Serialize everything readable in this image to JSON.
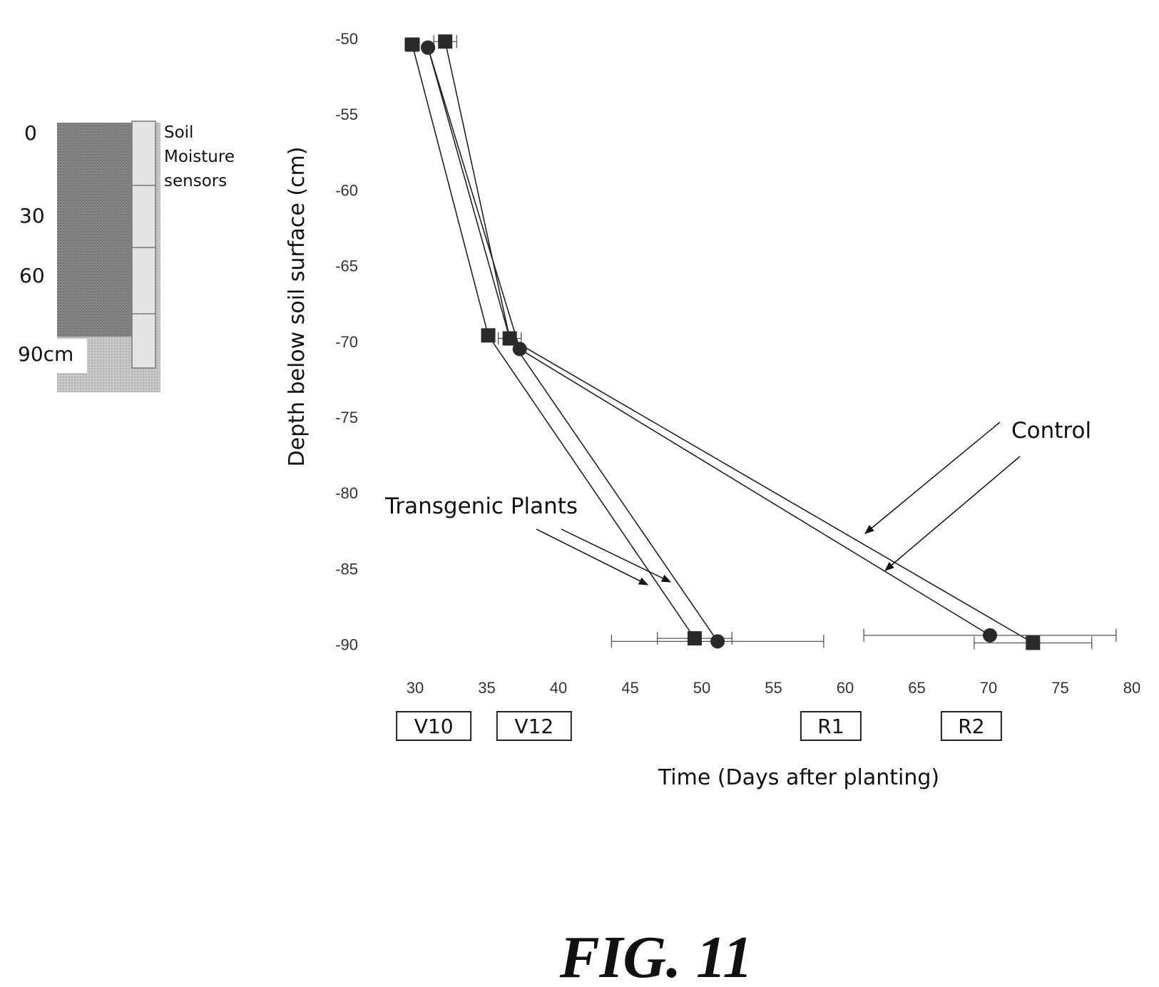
{
  "chart_data": {
    "type": "line",
    "title": "",
    "xlabel": "Time (Days after planting)",
    "ylabel": "Depth below soil surface (cm)",
    "xlim": [
      25,
      80
    ],
    "ylim": [
      -92,
      -50
    ],
    "x_ticks": [
      "30",
      "35",
      "40",
      "45",
      "50",
      "55",
      "60",
      "65",
      "70",
      "75",
      "80"
    ],
    "y_ticks": [
      "-50",
      "-55",
      "-60",
      "-65",
      "-70",
      "-75",
      "-80",
      "-85",
      "-90"
    ],
    "grid": false,
    "series": [
      {
        "group": "transgenic",
        "marker": "square",
        "points": [
          {
            "x": 29.8,
            "y": -50.4,
            "xerr": 0.5
          },
          {
            "x": 35.1,
            "y": -69.6,
            "xerr": 0
          },
          {
            "x": 49.5,
            "y": -89.6,
            "xerr": 2.6
          }
        ]
      },
      {
        "group": "transgenic",
        "marker": "circle",
        "points": [
          {
            "x": 30.9,
            "y": -50.6,
            "xerr": 0
          },
          {
            "x": 36.6,
            "y": -69.8,
            "xerr": 0
          },
          {
            "x": 51.1,
            "y": -89.8,
            "xerr": 7.4
          }
        ]
      },
      {
        "group": "control",
        "marker": "square",
        "points": [
          {
            "x": 32.1,
            "y": -50.2,
            "xerr": 0.8
          },
          {
            "x": 36.6,
            "y": -69.8,
            "xerr": 0.8
          },
          {
            "x": 73.1,
            "y": -89.9,
            "xerr": 4.1
          }
        ]
      },
      {
        "group": "control",
        "marker": "circle",
        "points": [
          {
            "x": 30.9,
            "y": -50.6,
            "xerr": 0
          },
          {
            "x": 37.3,
            "y": -70.5,
            "xerr": 0
          },
          {
            "x": 70.1,
            "y": -89.4,
            "xerr": 8.8
          }
        ]
      }
    ],
    "growth_stages": [
      {
        "label": "V10",
        "x_center": 31.3
      },
      {
        "label": "V12",
        "x_center": 38.3
      },
      {
        "label": "R1",
        "x_center": 59.0
      },
      {
        "label": "R2",
        "x_center": 68.8
      }
    ],
    "annotations": {
      "control": "Control",
      "transgenic": "Transgenic Plants"
    },
    "inset": {
      "depth_labels": [
        "0",
        "30",
        "60",
        "90cm"
      ],
      "sensor_label": [
        "Soil",
        "Moisture",
        "sensors"
      ]
    },
    "figure_label": "FIG. 11"
  }
}
